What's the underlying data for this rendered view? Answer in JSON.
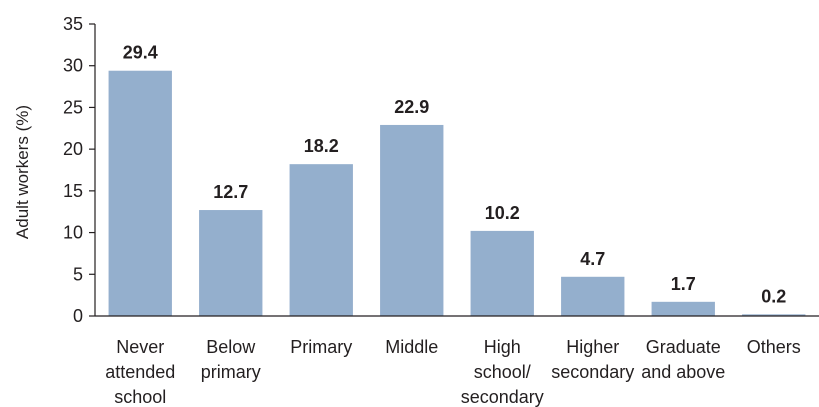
{
  "chart_data": {
    "type": "bar",
    "title": "",
    "xlabel": "",
    "ylabel": "Adult workers (%)",
    "ylim": [
      0,
      35
    ],
    "yticks": [
      0,
      5,
      10,
      15,
      20,
      25,
      30,
      35
    ],
    "grid": false,
    "categories": [
      [
        "Never",
        "attended",
        "school"
      ],
      [
        "Below",
        "primary"
      ],
      [
        "Primary"
      ],
      [
        "Middle"
      ],
      [
        "High",
        "school/",
        "secondary"
      ],
      [
        "Higher",
        "secondary"
      ],
      [
        "Graduate",
        "and above"
      ],
      [
        "Others"
      ]
    ],
    "values": [
      29.4,
      12.7,
      18.2,
      22.9,
      10.2,
      4.7,
      1.7,
      0.2
    ],
    "data_labels": [
      "29.4",
      "12.7",
      "18.2",
      "22.9",
      "10.2",
      "4.7",
      "1.7",
      "0.2"
    ],
    "colors": {
      "bar": "#94afcd",
      "axis": "#231f20"
    }
  }
}
